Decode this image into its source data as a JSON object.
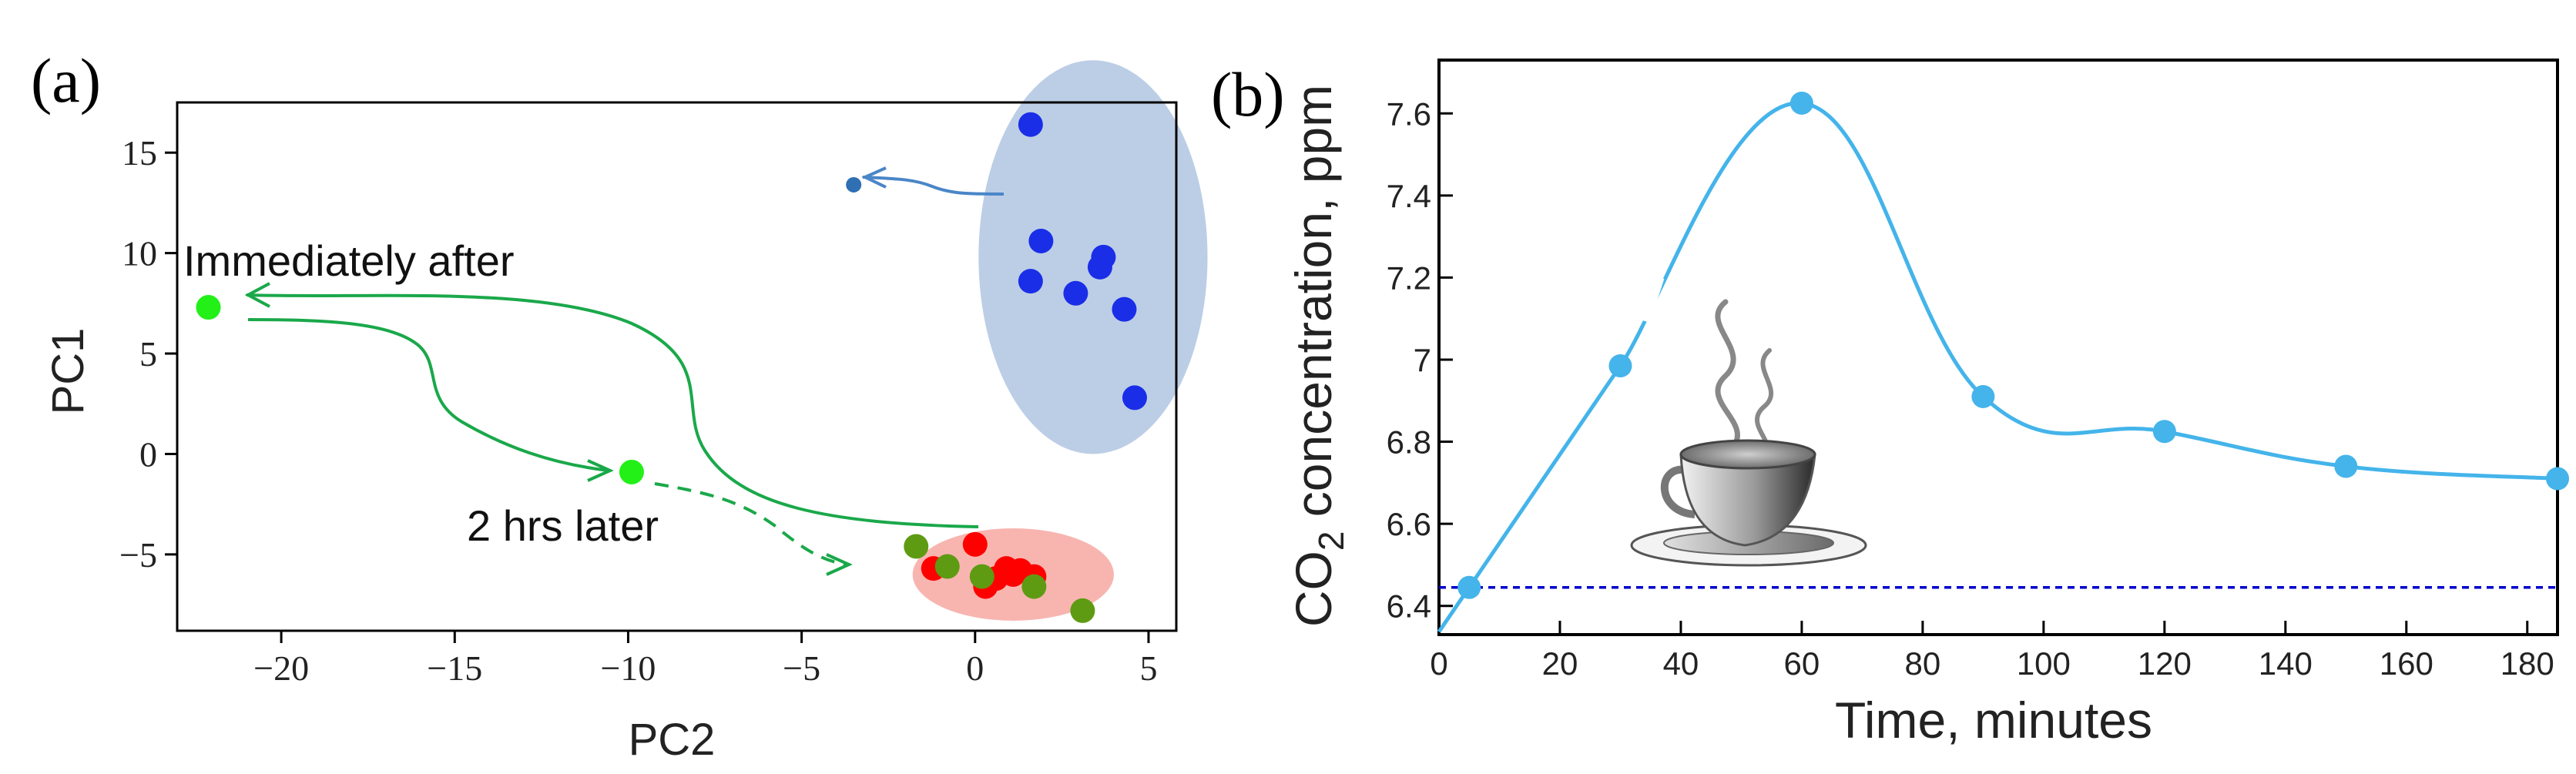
{
  "chart_data": [
    {
      "panel": "(a)",
      "type": "scatter",
      "xlabel": "PC2",
      "ylabel": "PC1",
      "xlim": [
        -23,
        5.8
      ],
      "ylim": [
        -8.8,
        17.5
      ],
      "xticks": [
        -20,
        -15,
        -10,
        -5,
        0,
        5
      ],
      "yticks": [
        -5,
        0,
        5,
        10,
        15
      ],
      "xtick_labels": [
        "−20",
        "−15",
        "−10",
        "−5",
        "0",
        "5"
      ],
      "ytick_labels": [
        "−5",
        "0",
        "5",
        "10",
        "15"
      ],
      "series": [
        {
          "name": "blue cluster",
          "color": "#1a2ee8",
          "points": [
            [
              1.6,
              16.4
            ],
            [
              1.9,
              10.6
            ],
            [
              1.6,
              8.6
            ],
            [
              2.9,
              8.0
            ],
            [
              3.7,
              9.8
            ],
            [
              3.6,
              9.3
            ],
            [
              4.3,
              7.2
            ],
            [
              4.6,
              2.8
            ]
          ]
        },
        {
          "name": "blue single",
          "color": "#2f6fb4",
          "points": [
            [
              -3.5,
              13.4
            ]
          ]
        },
        {
          "name": "red cluster",
          "color": "#ff0000",
          "points": [
            [
              -1.2,
              -5.7
            ],
            [
              0.0,
              -4.5
            ],
            [
              0.3,
              -6.6
            ],
            [
              0.6,
              -6.2
            ],
            [
              0.9,
              -5.7
            ],
            [
              1.3,
              -5.8
            ],
            [
              1.7,
              -6.1
            ],
            [
              1.1,
              -6.0
            ]
          ]
        },
        {
          "name": "olive cluster",
          "color": "#5e9b12",
          "points": [
            [
              -1.7,
              -4.6
            ],
            [
              -0.8,
              -5.6
            ],
            [
              0.2,
              -6.1
            ],
            [
              1.7,
              -6.6
            ],
            [
              3.1,
              -7.8
            ]
          ]
        },
        {
          "name": "bright green",
          "color": "#22f017",
          "points": [
            [
              -22.1,
              7.3
            ],
            [
              -9.9,
              -0.9
            ]
          ]
        }
      ],
      "ellipses": [
        {
          "name": "blue ellipse",
          "color": "#b0c6e2",
          "center": [
            3.4,
            9.8
          ],
          "rx": 3.3,
          "ry": 9.8
        },
        {
          "name": "red ellipse",
          "color": "#f7a8a2",
          "center": [
            1.1,
            -6.0
          ],
          "rx": 2.9,
          "ry": 2.3
        }
      ],
      "annotations": [
        "Immediately after",
        "2 hrs later"
      ]
    },
    {
      "panel": "(b)",
      "type": "line",
      "xlabel": "Time, minutes",
      "ylabel_prefix": "CO",
      "ylabel_sub": "2",
      "ylabel_suffix": " concentration, ppm",
      "xlim": [
        0,
        185
      ],
      "ylim": [
        6.33,
        7.73
      ],
      "xticks": [
        0,
        20,
        40,
        60,
        80,
        100,
        120,
        140,
        160,
        180
      ],
      "yticks": [
        6.4,
        6.6,
        6.8,
        7.0,
        7.2,
        7.4,
        7.6
      ],
      "xtick_labels": [
        "0",
        "20",
        "40",
        "60",
        "80",
        "100",
        "120",
        "140",
        "160",
        "180"
      ],
      "ytick_labels": [
        "6.4",
        "6.6",
        "6.8",
        "7",
        "7.2",
        "7.4",
        "7.6"
      ],
      "series": [
        {
          "name": "CO2",
          "color": "#44b4ea",
          "x": [
            5,
            30,
            60,
            90,
            120,
            150,
            185
          ],
          "y": [
            6.445,
            6.985,
            7.625,
            6.91,
            6.825,
            6.74,
            6.71
          ]
        }
      ],
      "baseline": {
        "y": 6.445,
        "color": "#0000cc"
      }
    }
  ]
}
